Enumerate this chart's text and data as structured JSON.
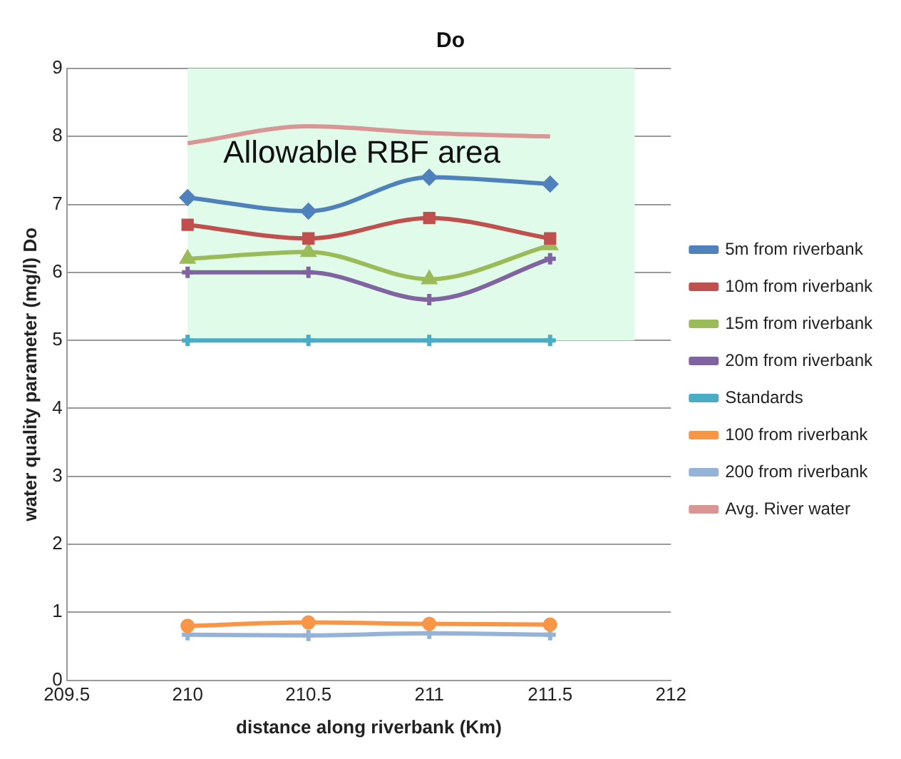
{
  "chart_data": {
    "type": "line",
    "title": "Do",
    "xlabel": "distance along riverbank (Km)",
    "ylabel": "water quality parameter (mg/l) Do",
    "x": [
      210,
      210.5,
      211,
      211.5
    ],
    "series": [
      {
        "name": "5m from riverbank",
        "color": "#4f81bd",
        "marker": "diamond",
        "values": [
          7.1,
          6.9,
          7.4,
          7.3
        ]
      },
      {
        "name": "10m from riverbank",
        "color": "#c0504d",
        "marker": "square",
        "values": [
          6.7,
          6.5,
          6.8,
          6.5
        ]
      },
      {
        "name": "15m from riverbank",
        "color": "#9bbb59",
        "marker": "triangle",
        "values": [
          6.2,
          6.3,
          5.9,
          6.4
        ]
      },
      {
        "name": "20m from riverbank",
        "color": "#8064a2",
        "marker": "cross",
        "values": [
          6.0,
          6.0,
          5.6,
          6.2
        ]
      },
      {
        "name": "Standards",
        "color": "#4bacc6",
        "marker": "cross",
        "values": [
          5,
          5,
          5,
          5
        ]
      },
      {
        "name": "100 from riverbank",
        "color": "#f79646",
        "marker": "circle",
        "values": [
          0.8,
          0.85,
          0.83,
          0.82
        ]
      },
      {
        "name": "200 from riverbank",
        "color": "#95b3d7",
        "marker": "cross",
        "values": [
          0.67,
          0.66,
          0.69,
          0.67
        ]
      },
      {
        "name": "Avg. River water",
        "color": "#d99694",
        "marker": "none",
        "values": [
          7.9,
          8.15,
          8.05,
          8.0
        ]
      }
    ],
    "xlim": [
      209.5,
      212
    ],
    "xticks": [
      209.5,
      210,
      210.5,
      211,
      211.5,
      212
    ],
    "ylim": [
      0,
      9
    ],
    "yticks": [
      0,
      1,
      2,
      3,
      4,
      5,
      6,
      7,
      8,
      9
    ],
    "bands": [
      {
        "axis": "y",
        "from": 5,
        "to": 9,
        "label": "Allowable RBF area",
        "color": "#e0fbea"
      }
    ],
    "grid": "y",
    "legend": "right"
  }
}
